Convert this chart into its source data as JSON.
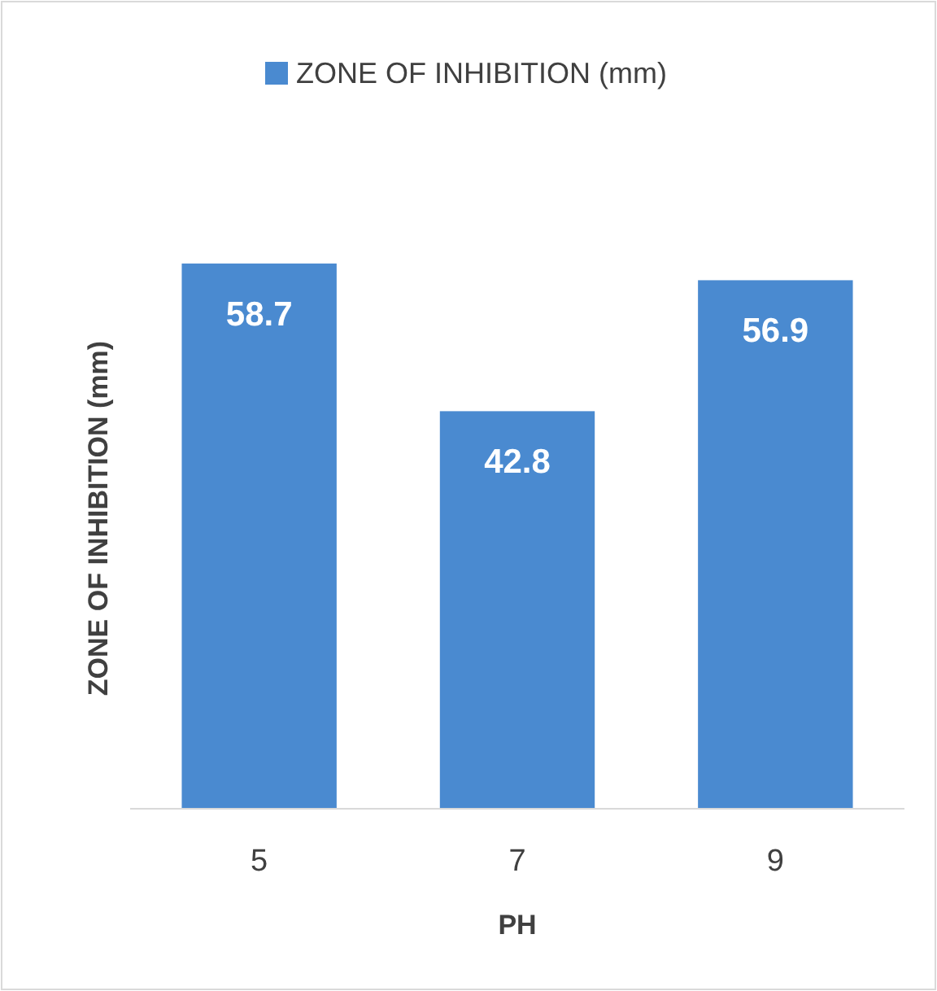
{
  "chart_data": {
    "type": "bar",
    "xlabel": "PH",
    "ylabel": "ZONE OF INHIBITION (mm)",
    "categories": [
      "5",
      "7",
      "9"
    ],
    "series": [
      {
        "name": "ZONE OF INHIBITION (mm)",
        "color": "#4a8ad0",
        "values": [
          58.7,
          42.8,
          56.9
        ]
      }
    ],
    "data_labels": true,
    "legend": "top",
    "grid": false
  }
}
